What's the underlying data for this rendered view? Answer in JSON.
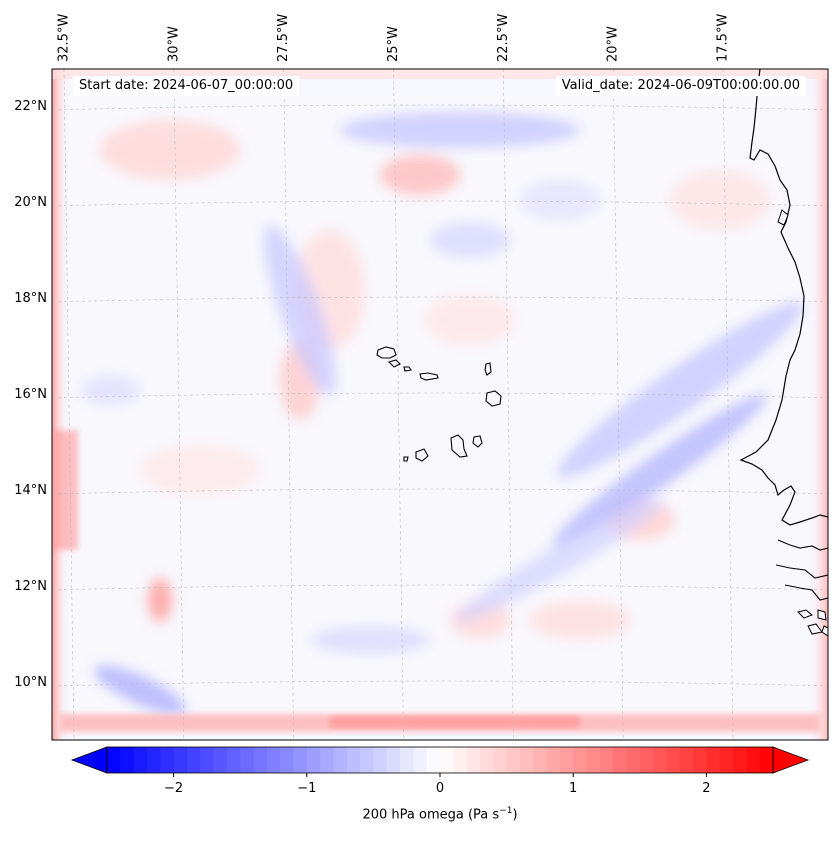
{
  "chart_data": {
    "type": "map",
    "variable_label": "200 hPa omega (Pa s",
    "variable_unit_exp": "−1",
    "variable_label_close": ")",
    "start_label": "Start date: 2024-06-07_00:00:00",
    "valid_label": "Valid_date: 2024-06-09T00:00:00.00",
    "lon_ticks": [
      "32.5°W",
      "30°W",
      "27.5°W",
      "25°W",
      "22.5°W",
      "20°W",
      "17.5°W"
    ],
    "lat_ticks": [
      "22°N",
      "20°N",
      "18°N",
      "16°N",
      "14°N",
      "12°N",
      "10°N"
    ],
    "lon_values": [
      -32.5,
      -30,
      -27.5,
      -25,
      -22.5,
      -20,
      -17.5
    ],
    "lat_values": [
      22,
      20,
      18,
      16,
      14,
      12,
      10
    ],
    "colorbar": {
      "ticks": [
        "−2",
        "−1",
        "0",
        "1",
        "2"
      ],
      "tick_values": [
        -2,
        -1,
        0,
        1,
        2
      ],
      "range": [
        -2.5,
        2.5
      ],
      "colormap": "bwr",
      "extend": "both",
      "low_color": "#0000ff",
      "mid_color": "#ffffff",
      "high_color": "#ff0000"
    },
    "gridlines": true,
    "coastline_color": "#000000",
    "features": [
      "Cape Verde islands",
      "West African coastline"
    ]
  }
}
